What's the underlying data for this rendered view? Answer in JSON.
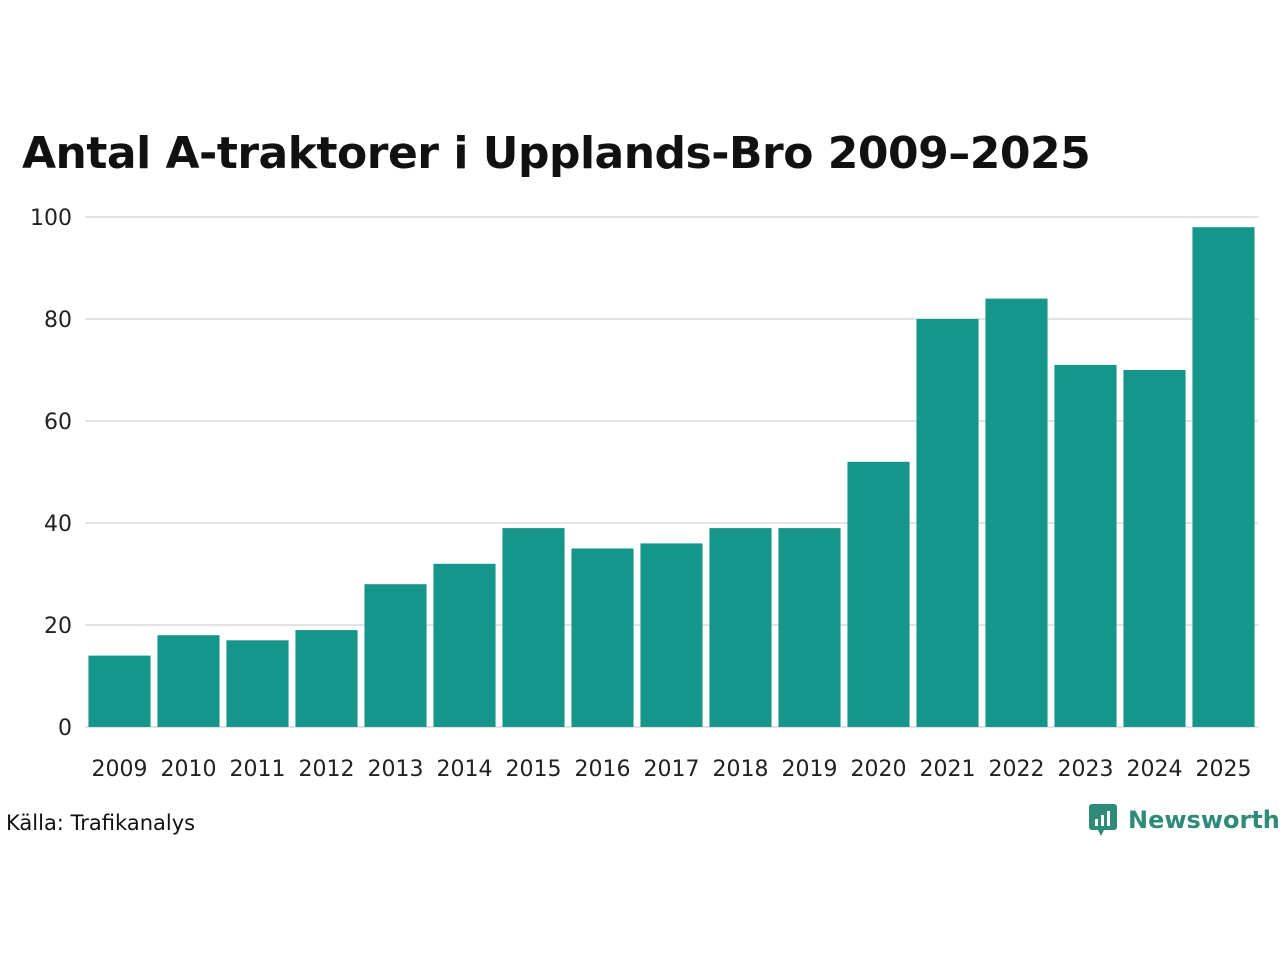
{
  "chart_data": {
    "type": "bar",
    "title": "Antal A-traktorer i Upplands-Bro 2009–2025",
    "categories": [
      "2009",
      "2010",
      "2011",
      "2012",
      "2013",
      "2014",
      "2015",
      "2016",
      "2017",
      "2018",
      "2019",
      "2020",
      "2021",
      "2022",
      "2023",
      "2024",
      "2025"
    ],
    "values": [
      14,
      18,
      17,
      19,
      28,
      32,
      39,
      35,
      36,
      39,
      39,
      52,
      80,
      84,
      71,
      70,
      98
    ],
    "ylim": [
      0,
      100
    ],
    "yticks": [
      0,
      20,
      40,
      60,
      80,
      100
    ],
    "xlabel": "",
    "ylabel": "",
    "grid": true,
    "legend": "none",
    "bar_color": "#16968a",
    "grid_color": "#e3e3e6"
  },
  "footer": {
    "source": "Källa: Trafikanalys",
    "brand": "Newsworthy",
    "brand_color": "#2e8b7a"
  }
}
